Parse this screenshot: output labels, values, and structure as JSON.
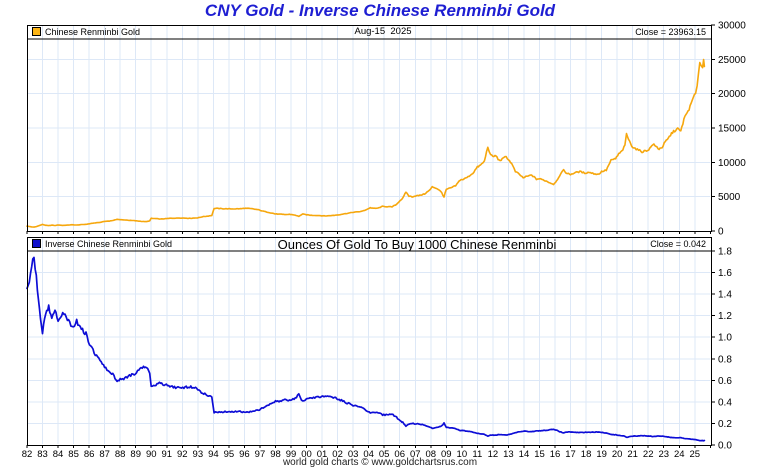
{
  "title": "CNY Gold - Inverse Chinese Renminbi Gold",
  "footer": "world gold charts © www.goldchartsrus.com",
  "panels": [
    {
      "legend_label": "Chinese Renminbi Gold",
      "center_text": "Aug-15  2025",
      "close_text": "Close = 23963.15"
    },
    {
      "legend_label": "Inverse Chinese Renminbi Gold",
      "center_text": "Ounces Of Gold To Buy 1000 Chinese Renminbi",
      "close_text": "Close = 0.042"
    }
  ],
  "colors": {
    "title": "#1e1ed2",
    "gold_line": "#f6a70d",
    "gold_swatch": "#fdb515",
    "blue_line": "#0d0dd6",
    "blue_swatch": "#1010cc",
    "grid": "#dde8f7",
    "axis": "#000000"
  },
  "chart_data": {
    "type": "line",
    "grid": true,
    "legend_position": "top-left",
    "x_label_years": [
      "82",
      "83",
      "84",
      "85",
      "86",
      "87",
      "88",
      "89",
      "90",
      "91",
      "92",
      "93",
      "94",
      "95",
      "96",
      "97",
      "98",
      "99",
      "00",
      "01",
      "02",
      "03",
      "04",
      "05",
      "06",
      "07",
      "08",
      "09",
      "10",
      "11",
      "12",
      "13",
      "14",
      "15",
      "16",
      "17",
      "18",
      "19",
      "20",
      "21",
      "22",
      "23",
      "24",
      "25"
    ],
    "x": [
      1982.0,
      1982.15,
      1982.3,
      1982.45,
      1982.6,
      1982.8,
      1983.0,
      1983.2,
      1983.4,
      1983.6,
      1983.8,
      1984.0,
      1984.3,
      1984.6,
      1984.9,
      1985.2,
      1985.5,
      1985.8,
      1986.1,
      1986.4,
      1986.7,
      1987.0,
      1987.3,
      1987.6,
      1987.8,
      1988.0,
      1988.3,
      1988.6,
      1988.9,
      1989.2,
      1989.5,
      1989.7,
      1989.9,
      1990.0,
      1990.3,
      1990.6,
      1990.9,
      1991.2,
      1991.5,
      1991.8,
      1992.1,
      1992.4,
      1992.7,
      1993.0,
      1993.3,
      1993.6,
      1993.9,
      1994.05,
      1994.3,
      1994.6,
      1994.9,
      1995.2,
      1995.5,
      1995.8,
      1996.0,
      1996.3,
      1996.6,
      1996.9,
      1997.2,
      1997.5,
      1997.8,
      1998.0,
      1998.3,
      1998.6,
      1998.9,
      1999.2,
      1999.5,
      1999.75,
      2000.0,
      2000.3,
      2000.6,
      2000.9,
      2001.2,
      2001.5,
      2001.8,
      2002.1,
      2002.4,
      2002.7,
      2003.0,
      2003.3,
      2003.6,
      2003.9,
      2004.1,
      2004.3,
      2004.6,
      2004.9,
      2005.2,
      2005.5,
      2005.8,
      2006.0,
      2006.2,
      2006.4,
      2006.6,
      2006.8,
      2007.0,
      2007.3,
      2007.6,
      2007.9,
      2008.1,
      2008.3,
      2008.5,
      2008.7,
      2008.85,
      2009.0,
      2009.3,
      2009.6,
      2009.9,
      2010.1,
      2010.4,
      2010.7,
      2011.0,
      2011.2,
      2011.45,
      2011.67,
      2011.85,
      2012.0,
      2012.2,
      2012.4,
      2012.6,
      2012.85,
      2013.0,
      2013.2,
      2013.45,
      2013.7,
      2013.95,
      2014.2,
      2014.5,
      2014.8,
      2015.0,
      2015.3,
      2015.6,
      2015.9,
      2016.1,
      2016.3,
      2016.55,
      2016.8,
      2017.0,
      2017.3,
      2017.6,
      2017.9,
      2018.2,
      2018.5,
      2018.8,
      2019.0,
      2019.3,
      2019.6,
      2019.9,
      2020.1,
      2020.3,
      2020.5,
      2020.6,
      2020.8,
      2021.0,
      2021.3,
      2021.6,
      2021.9,
      2022.1,
      2022.3,
      2022.5,
      2022.7,
      2022.9,
      2023.1,
      2023.3,
      2023.5,
      2023.7,
      2023.9,
      2024.1,
      2024.3,
      2024.5,
      2024.7,
      2024.9,
      2025.05,
      2025.15,
      2025.25,
      2025.32,
      2025.4,
      2025.5,
      2025.57,
      2025.62
    ],
    "panels": [
      {
        "name": "Chinese Renminbi Gold",
        "subtitle": "Aug-15  2025",
        "close": 23963.15,
        "ylim": [
          0,
          30000
        ],
        "yticks": [
          0,
          5000,
          10000,
          15000,
          20000,
          25000,
          30000
        ],
        "ytick_labels": [
          "0",
          "5000",
          "10000",
          "15000",
          "20000",
          "25000",
          "30000"
        ],
        "values": [
          700,
          660,
          600,
          570,
          640,
          800,
          950,
          830,
          780,
          850,
          800,
          870,
          820,
          850,
          910,
          870,
          930,
          970,
          1090,
          1180,
          1250,
          1400,
          1450,
          1560,
          1720,
          1640,
          1610,
          1550,
          1510,
          1440,
          1380,
          1370,
          1480,
          1850,
          1800,
          1740,
          1790,
          1850,
          1870,
          1890,
          1880,
          1850,
          1870,
          1920,
          2080,
          2160,
          2260,
          3300,
          3280,
          3250,
          3230,
          3220,
          3230,
          3240,
          3310,
          3280,
          3200,
          3090,
          2890,
          2740,
          2590,
          2480,
          2450,
          2390,
          2430,
          2340,
          2140,
          2470,
          2370,
          2290,
          2270,
          2240,
          2190,
          2230,
          2290,
          2360,
          2490,
          2600,
          2720,
          2790,
          2890,
          3160,
          3390,
          3290,
          3330,
          3590,
          3540,
          3510,
          3890,
          4380,
          4780,
          5680,
          5080,
          4990,
          5100,
          5190,
          5400,
          5890,
          6420,
          6280,
          6050,
          5600,
          4950,
          6050,
          6280,
          6580,
          7460,
          7520,
          7890,
          8400,
          9300,
          9580,
          10150,
          12250,
          11050,
          10850,
          10950,
          10250,
          10450,
          10850,
          10400,
          9850,
          8650,
          8250,
          7750,
          7950,
          8150,
          7550,
          7600,
          7400,
          7100,
          6800,
          7300,
          8100,
          8850,
          8350,
          8250,
          8500,
          8650,
          8450,
          8550,
          8350,
          8250,
          8650,
          8850,
          10250,
          10550,
          11200,
          11600,
          12400,
          14150,
          13000,
          12250,
          11850,
          11550,
          11700,
          12000,
          12650,
          12300,
          11950,
          12200,
          12950,
          13500,
          14200,
          14600,
          14900,
          14500,
          16300,
          17200,
          18100,
          19400,
          19900,
          21300,
          23300,
          24700,
          24100,
          23800,
          24900,
          23963.15
        ]
      },
      {
        "name": "Inverse Chinese Renminbi Gold",
        "subtitle": "Ounces Of Gold To Buy 1000 Chinese Renminbi",
        "close": 0.042,
        "ylim": [
          0,
          1.93
        ],
        "yticks": [
          0,
          0.2,
          0.4,
          0.6,
          0.8,
          1.0,
          1.2,
          1.4,
          1.6,
          1.8
        ],
        "ytick_labels": [
          "0.0",
          "0.2",
          "0.4",
          "0.6",
          "0.8",
          "1.0",
          "1.2",
          "1.4",
          "1.6",
          "1.8"
        ],
        "values": [
          1.429,
          1.515,
          1.667,
          1.754,
          1.563,
          1.25,
          1.053,
          1.205,
          1.282,
          1.176,
          1.25,
          1.149,
          1.22,
          1.176,
          1.099,
          1.149,
          1.075,
          1.031,
          0.917,
          0.847,
          0.8,
          0.714,
          0.69,
          0.641,
          0.581,
          0.61,
          0.621,
          0.645,
          0.662,
          0.694,
          0.725,
          0.73,
          0.676,
          0.541,
          0.556,
          0.575,
          0.559,
          0.541,
          0.535,
          0.529,
          0.532,
          0.541,
          0.535,
          0.521,
          0.481,
          0.463,
          0.442,
          0.303,
          0.305,
          0.308,
          0.31,
          0.311,
          0.31,
          0.309,
          0.302,
          0.305,
          0.313,
          0.324,
          0.346,
          0.365,
          0.386,
          0.403,
          0.408,
          0.418,
          0.412,
          0.427,
          0.467,
          0.405,
          0.422,
          0.437,
          0.441,
          0.446,
          0.457,
          0.448,
          0.437,
          0.424,
          0.402,
          0.385,
          0.368,
          0.358,
          0.346,
          0.316,
          0.295,
          0.304,
          0.3,
          0.279,
          0.282,
          0.285,
          0.257,
          0.228,
          0.209,
          0.176,
          0.197,
          0.2,
          0.196,
          0.193,
          0.185,
          0.17,
          0.156,
          0.159,
          0.165,
          0.179,
          0.202,
          0.165,
          0.159,
          0.152,
          0.134,
          0.133,
          0.127,
          0.119,
          0.108,
          0.104,
          0.099,
          0.082,
          0.09,
          0.092,
          0.091,
          0.098,
          0.096,
          0.092,
          0.096,
          0.102,
          0.116,
          0.121,
          0.129,
          0.126,
          0.123,
          0.132,
          0.132,
          0.135,
          0.141,
          0.147,
          0.137,
          0.123,
          0.113,
          0.12,
          0.121,
          0.118,
          0.116,
          0.118,
          0.117,
          0.12,
          0.121,
          0.116,
          0.113,
          0.098,
          0.095,
          0.089,
          0.086,
          0.081,
          0.071,
          0.077,
          0.082,
          0.084,
          0.087,
          0.085,
          0.083,
          0.079,
          0.081,
          0.084,
          0.082,
          0.077,
          0.074,
          0.07,
          0.068,
          0.067,
          0.069,
          0.061,
          0.058,
          0.055,
          0.052,
          0.05,
          0.047,
          0.043,
          0.04,
          0.041,
          0.042,
          0.04,
          0.042
        ]
      }
    ]
  }
}
